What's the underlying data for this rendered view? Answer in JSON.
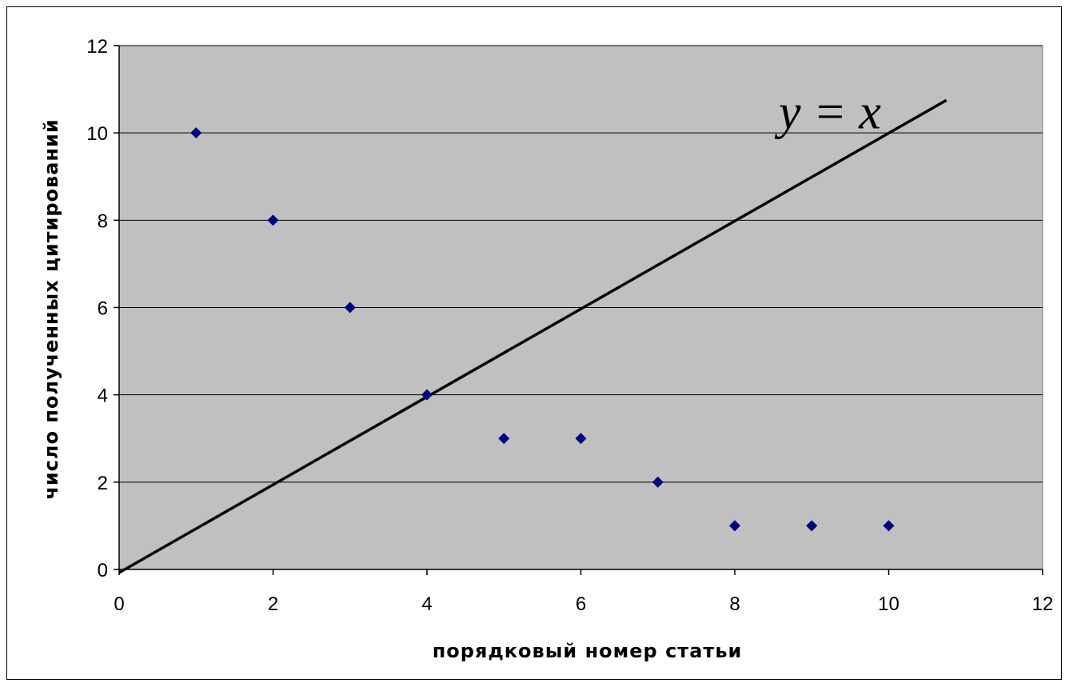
{
  "chart_data": {
    "type": "scatter",
    "title": "",
    "xlabel": "порядковый номер статьи",
    "ylabel": "число полученных цитирований",
    "xlim": [
      0,
      12
    ],
    "ylim": [
      0,
      12
    ],
    "xticks": [
      0,
      2,
      4,
      6,
      8,
      10,
      12
    ],
    "yticks": [
      0,
      2,
      4,
      6,
      8,
      10,
      12
    ],
    "grid": "horizontal",
    "plot_background": "#c0c0c0",
    "series": [
      {
        "x": [
          1,
          2,
          3,
          4,
          5,
          6,
          7,
          8,
          9,
          10
        ],
        "y": [
          10,
          8,
          6,
          4,
          3,
          3,
          2,
          1,
          1,
          1
        ],
        "marker": "diamond",
        "color": "#000080"
      }
    ],
    "reference_line": {
      "x": [
        0,
        10.75
      ],
      "y": [
        0,
        10.75
      ],
      "color": "#000000"
    },
    "annotations": [
      {
        "text": "y = x",
        "x": 9.9,
        "y": 10.1
      }
    ]
  }
}
